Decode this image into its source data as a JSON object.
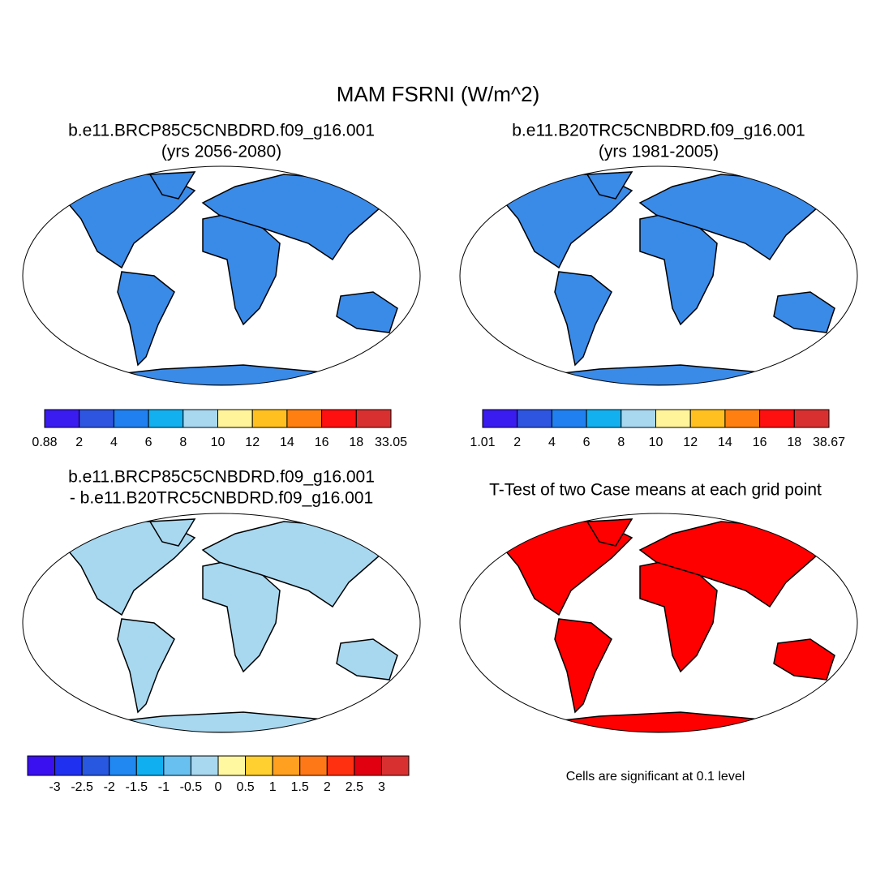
{
  "title": "MAM FSRNI (W/m^2)",
  "panels": [
    {
      "title_lines": [
        "b.e11.BRCP85C5CNBDRD.f09_g16.001",
        "(yrs 2056-2080)"
      ],
      "colorbar": {
        "colors": [
          "#3a1cf0",
          "#2e55e0",
          "#2080f0",
          "#13b0f0",
          "#a8d8f0",
          "#fff49a",
          "#ffc020",
          "#ff8010",
          "#ff1010",
          "#d83030"
        ],
        "labels": [
          0.88,
          2,
          4,
          6,
          8,
          10,
          12,
          14,
          16,
          18,
          33.05
        ]
      }
    },
    {
      "title_lines": [
        "b.e11.B20TRC5CNBDRD.f09_g16.001",
        "(yrs 1981-2005)"
      ],
      "colorbar": {
        "colors": [
          "#3a1cf0",
          "#2e55e0",
          "#2080f0",
          "#13b0f0",
          "#a8d8f0",
          "#fff49a",
          "#ffc020",
          "#ff8010",
          "#ff1010",
          "#d83030"
        ],
        "labels": [
          1.01,
          2,
          4,
          6,
          8,
          10,
          12,
          14,
          16,
          18,
          38.67
        ]
      }
    },
    {
      "title_lines": [
        "b.e11.BRCP85C5CNBDRD.f09_g16.001",
        "- b.e11.B20TRC5CNBDRD.f09_g16.001"
      ],
      "colorbar": {
        "colors": [
          "#3a10f0",
          "#2030f0",
          "#2858e0",
          "#2088f0",
          "#10b0f0",
          "#68c0f0",
          "#a8d8f0",
          "#fff8a0",
          "#ffd030",
          "#ffa020",
          "#ff7818",
          "#ff3010",
          "#e00010",
          "#d83030"
        ],
        "labels": [
          -3,
          -2.5,
          -2,
          -1.5,
          -1,
          -0.5,
          0,
          0.5,
          1,
          1.5,
          2,
          2.5,
          3
        ]
      }
    },
    {
      "title_lines": [
        "T-Test of two Case means at each grid point"
      ]
    }
  ],
  "note": "Cells are significant at 0.1 level"
}
